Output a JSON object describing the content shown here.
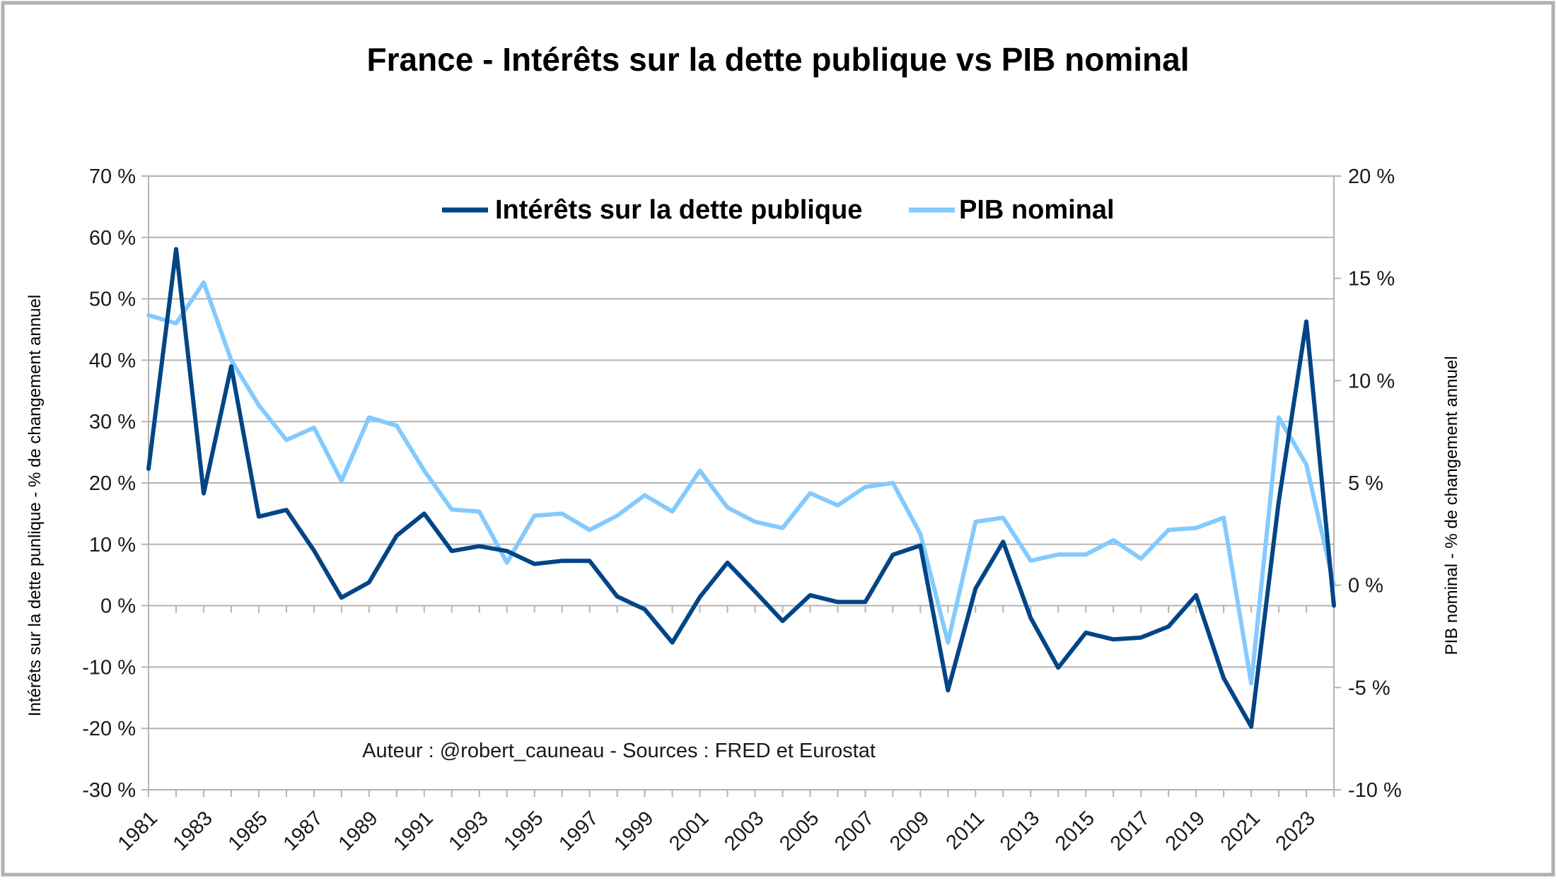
{
  "chart_data": {
    "type": "line",
    "title": "France - Intérêts sur la dette publique vs PIB nominal",
    "ylabel_left": "Intérêts sur la dette punlique - % de changement annuel",
    "ylabel_right": "PIB nominal - % de changement annuel",
    "annotation": "Auteur : @robert_cauneau - Sources : FRED et Eurostat",
    "legend_position": "top-center",
    "grid": true,
    "y_left": {
      "min": -30,
      "max": 70,
      "step": 10,
      "unit": " %"
    },
    "y_right": {
      "min": -10,
      "max": 20,
      "step": 5,
      "unit": " %"
    },
    "x": [
      1981,
      1982,
      1983,
      1984,
      1985,
      1986,
      1987,
      1988,
      1989,
      1990,
      1991,
      1992,
      1993,
      1994,
      1995,
      1996,
      1997,
      1998,
      1999,
      2000,
      2001,
      2002,
      2003,
      2004,
      2005,
      2006,
      2007,
      2008,
      2009,
      2010,
      2011,
      2012,
      2013,
      2014,
      2015,
      2016,
      2017,
      2018,
      2019,
      2020,
      2021,
      2022,
      2023,
      2024
    ],
    "x_tick_labels": [
      "1981",
      "1983",
      "1985",
      "1987",
      "1989",
      "1991",
      "1993",
      "1995",
      "1997",
      "1999",
      "2001",
      "2003",
      "2005",
      "2007",
      "2009",
      "2011",
      "2013",
      "2015",
      "2017",
      "2019",
      "2021",
      "2023"
    ],
    "series": [
      {
        "name": "Intérêts sur la dette publique",
        "axis": "left",
        "color": "#004586",
        "values": [
          22.3,
          58.1,
          18.3,
          39.0,
          14.5,
          15.6,
          9.0,
          1.3,
          3.8,
          11.4,
          15.0,
          8.9,
          9.7,
          8.9,
          6.8,
          7.3,
          7.3,
          1.5,
          -0.6,
          -6.0,
          1.4,
          7.0,
          2.3,
          -2.5,
          1.7,
          0.6,
          0.6,
          8.3,
          9.8,
          -13.8,
          2.8,
          10.4,
          -2.0,
          -10.1,
          -4.4,
          -5.5,
          -5.2,
          -3.4,
          1.7,
          -11.8,
          -19.7,
          17.0,
          46.3,
          0.0
        ]
      },
      {
        "name": "PIB nominal",
        "axis": "right",
        "color": "#83caff",
        "values": [
          13.2,
          12.8,
          14.8,
          11.0,
          8.8,
          7.1,
          7.7,
          5.1,
          8.2,
          7.8,
          5.6,
          3.7,
          3.6,
          1.1,
          3.4,
          3.5,
          2.7,
          3.4,
          4.4,
          3.6,
          5.6,
          3.8,
          3.1,
          2.8,
          4.5,
          3.9,
          4.8,
          5.0,
          2.5,
          -2.8,
          3.1,
          3.3,
          1.2,
          1.5,
          1.5,
          2.2,
          1.3,
          2.7,
          2.8,
          3.3,
          -4.8,
          8.2,
          5.9,
          0.0
        ]
      }
    ]
  }
}
